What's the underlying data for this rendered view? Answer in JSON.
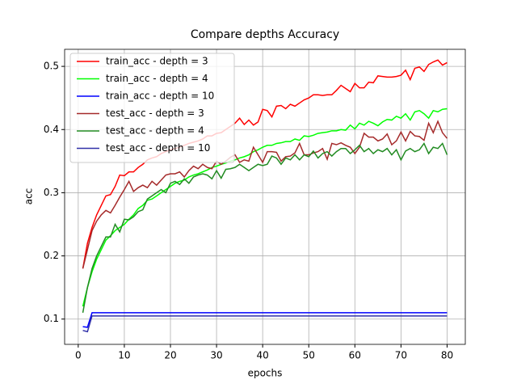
{
  "chart_data": {
    "type": "line",
    "title": "Compare depths Accuracy",
    "x_label": "epochs",
    "y_label": "acc",
    "x": [
      1,
      2,
      3,
      4,
      5,
      6,
      7,
      8,
      9,
      10,
      11,
      12,
      13,
      14,
      15,
      16,
      17,
      18,
      19,
      20,
      21,
      22,
      23,
      24,
      25,
      26,
      27,
      28,
      29,
      30,
      31,
      32,
      33,
      34,
      35,
      36,
      37,
      38,
      39,
      40,
      41,
      42,
      43,
      44,
      45,
      46,
      47,
      48,
      49,
      50,
      51,
      52,
      53,
      54,
      55,
      56,
      57,
      58,
      59,
      60,
      61,
      62,
      63,
      64,
      65,
      66,
      67,
      68,
      69,
      70,
      71,
      72,
      73,
      74,
      75,
      76,
      77,
      78,
      79,
      80
    ],
    "series": [
      {
        "name": "train_acc - depth = 3",
        "color": "#ff0000",
        "values": [
          0.18,
          0.22,
          0.245,
          0.265,
          0.28,
          0.295,
          0.297,
          0.31,
          0.328,
          0.327,
          0.333,
          0.333,
          0.34,
          0.345,
          0.352,
          0.355,
          0.357,
          0.362,
          0.365,
          0.368,
          0.37,
          0.372,
          0.375,
          0.378,
          0.38,
          0.382,
          0.385,
          0.39,
          0.39,
          0.394,
          0.395,
          0.4,
          0.405,
          0.41,
          0.418,
          0.408,
          0.415,
          0.407,
          0.412,
          0.432,
          0.43,
          0.42,
          0.437,
          0.438,
          0.433,
          0.44,
          0.437,
          0.442,
          0.447,
          0.45,
          0.455,
          0.455,
          0.454,
          0.455,
          0.455,
          0.462,
          0.47,
          0.465,
          0.46,
          0.473,
          0.466,
          0.466,
          0.475,
          0.474,
          0.485,
          0.484,
          0.483,
          0.483,
          0.484,
          0.486,
          0.494,
          0.479,
          0.497,
          0.499,
          0.492,
          0.503,
          0.507,
          0.51,
          0.502,
          0.506
        ]
      },
      {
        "name": "train_acc - depth = 4",
        "color": "#00ff00",
        "values": [
          0.12,
          0.15,
          0.175,
          0.195,
          0.21,
          0.225,
          0.232,
          0.24,
          0.245,
          0.25,
          0.258,
          0.265,
          0.275,
          0.28,
          0.288,
          0.29,
          0.295,
          0.3,
          0.305,
          0.31,
          0.315,
          0.318,
          0.32,
          0.325,
          0.328,
          0.33,
          0.333,
          0.336,
          0.34,
          0.342,
          0.345,
          0.347,
          0.35,
          0.352,
          0.355,
          0.357,
          0.36,
          0.365,
          0.368,
          0.372,
          0.375,
          0.375,
          0.378,
          0.379,
          0.381,
          0.381,
          0.385,
          0.383,
          0.39,
          0.389,
          0.391,
          0.394,
          0.395,
          0.396,
          0.398,
          0.398,
          0.4,
          0.399,
          0.407,
          0.401,
          0.41,
          0.407,
          0.413,
          0.41,
          0.406,
          0.412,
          0.416,
          0.415,
          0.421,
          0.418,
          0.425,
          0.415,
          0.428,
          0.43,
          0.425,
          0.418,
          0.43,
          0.428,
          0.432,
          0.433
        ]
      },
      {
        "name": "train_acc - depth = 10",
        "color": "#0000ff",
        "values": [
          0.088,
          0.087,
          0.11,
          0.11,
          0.11,
          0.11,
          0.11,
          0.11,
          0.11,
          0.11,
          0.11,
          0.11,
          0.11,
          0.11,
          0.11,
          0.11,
          0.11,
          0.11,
          0.11,
          0.11,
          0.11,
          0.11,
          0.11,
          0.11,
          0.11,
          0.11,
          0.11,
          0.11,
          0.11,
          0.11,
          0.11,
          0.11,
          0.11,
          0.11,
          0.11,
          0.11,
          0.11,
          0.11,
          0.11,
          0.11,
          0.11,
          0.11,
          0.11,
          0.11,
          0.11,
          0.11,
          0.11,
          0.11,
          0.11,
          0.11,
          0.11,
          0.11,
          0.11,
          0.11,
          0.11,
          0.11,
          0.11,
          0.11,
          0.11,
          0.11,
          0.11,
          0.11,
          0.11,
          0.11,
          0.11,
          0.11,
          0.11,
          0.11,
          0.11,
          0.11,
          0.11,
          0.11,
          0.11,
          0.11,
          0.11,
          0.11,
          0.11,
          0.11,
          0.11,
          0.11
        ]
      },
      {
        "name": "test_acc - depth = 3",
        "color": "#a52a2a",
        "values": [
          0.18,
          0.21,
          0.24,
          0.255,
          0.265,
          0.272,
          0.268,
          0.28,
          0.293,
          0.305,
          0.318,
          0.302,
          0.308,
          0.312,
          0.308,
          0.318,
          0.312,
          0.32,
          0.328,
          0.33,
          0.33,
          0.333,
          0.325,
          0.335,
          0.342,
          0.338,
          0.345,
          0.34,
          0.338,
          0.35,
          0.345,
          0.35,
          0.356,
          0.36,
          0.348,
          0.352,
          0.35,
          0.372,
          0.36,
          0.348,
          0.365,
          0.365,
          0.364,
          0.35,
          0.357,
          0.358,
          0.363,
          0.378,
          0.36,
          0.36,
          0.363,
          0.365,
          0.37,
          0.353,
          0.378,
          0.376,
          0.379,
          0.375,
          0.372,
          0.362,
          0.372,
          0.394,
          0.388,
          0.388,
          0.382,
          0.385,
          0.393,
          0.376,
          0.382,
          0.396,
          0.382,
          0.397,
          0.39,
          0.389,
          0.383,
          0.41,
          0.395,
          0.413,
          0.395,
          0.386
        ]
      },
      {
        "name": "test_acc - depth = 4",
        "color": "#228b22",
        "values": [
          0.11,
          0.15,
          0.18,
          0.2,
          0.215,
          0.23,
          0.23,
          0.25,
          0.238,
          0.258,
          0.257,
          0.262,
          0.27,
          0.273,
          0.29,
          0.295,
          0.3,
          0.305,
          0.3,
          0.315,
          0.318,
          0.313,
          0.322,
          0.315,
          0.325,
          0.328,
          0.33,
          0.328,
          0.322,
          0.335,
          0.323,
          0.337,
          0.338,
          0.34,
          0.345,
          0.34,
          0.335,
          0.34,
          0.345,
          0.343,
          0.345,
          0.358,
          0.355,
          0.345,
          0.355,
          0.352,
          0.36,
          0.352,
          0.36,
          0.357,
          0.366,
          0.355,
          0.362,
          0.365,
          0.358,
          0.365,
          0.37,
          0.37,
          0.362,
          0.368,
          0.375,
          0.365,
          0.37,
          0.362,
          0.368,
          0.365,
          0.37,
          0.36,
          0.368,
          0.352,
          0.366,
          0.37,
          0.365,
          0.368,
          0.378,
          0.362,
          0.372,
          0.37,
          0.378,
          0.36
        ]
      },
      {
        "name": "test_acc - depth = 10",
        "color": "#3030a8",
        "values": [
          0.082,
          0.08,
          0.105,
          0.105,
          0.105,
          0.105,
          0.105,
          0.105,
          0.105,
          0.105,
          0.105,
          0.105,
          0.105,
          0.105,
          0.105,
          0.105,
          0.105,
          0.105,
          0.105,
          0.105,
          0.105,
          0.105,
          0.105,
          0.105,
          0.105,
          0.105,
          0.105,
          0.105,
          0.105,
          0.105,
          0.105,
          0.105,
          0.105,
          0.105,
          0.105,
          0.105,
          0.105,
          0.105,
          0.105,
          0.105,
          0.105,
          0.105,
          0.105,
          0.105,
          0.105,
          0.105,
          0.105,
          0.105,
          0.105,
          0.105,
          0.105,
          0.105,
          0.105,
          0.105,
          0.105,
          0.105,
          0.105,
          0.105,
          0.105,
          0.105,
          0.105,
          0.105,
          0.105,
          0.105,
          0.105,
          0.105,
          0.105,
          0.105,
          0.105,
          0.105,
          0.105,
          0.105,
          0.105,
          0.105,
          0.105,
          0.105,
          0.105,
          0.105,
          0.105,
          0.105
        ]
      }
    ],
    "xlim": [
      -2.95,
      83.95
    ],
    "xticks": [
      0,
      10,
      20,
      30,
      40,
      50,
      60,
      70,
      80
    ],
    "ylim": [
      0.06,
      0.527
    ],
    "yticks": [
      0.1,
      0.2,
      0.3,
      0.4,
      0.5
    ],
    "grid": true,
    "legend_loc": "upper left"
  }
}
